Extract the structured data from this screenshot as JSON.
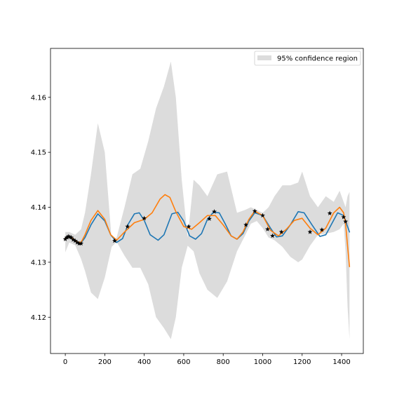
{
  "chart_data": {
    "type": "line",
    "title": "",
    "xlabel": "",
    "ylabel": "",
    "xlim": [
      -75,
      1510
    ],
    "ylim": [
      4.1134,
      4.1689
    ],
    "xticks": [
      0,
      200,
      400,
      600,
      800,
      1000,
      1200,
      1400
    ],
    "xtick_labels": [
      "0",
      "200",
      "400",
      "600",
      "800",
      "1000",
      "1200",
      "1400"
    ],
    "yticks": [
      4.12,
      4.13,
      4.14,
      4.15,
      4.16
    ],
    "ytick_labels": [
      "4.12",
      "4.13",
      "4.14",
      "4.15",
      "4.16"
    ],
    "grid": false,
    "legend": {
      "placement": "top-right",
      "entries": [
        "95% confidence region"
      ]
    },
    "colors": {
      "blue": "#1f77b4",
      "orange": "#ff7f0e",
      "band": "#dcdcdc",
      "markers": "#000000"
    },
    "band": {
      "label": "95% confidence region",
      "x": [
        0,
        20,
        50,
        80,
        100,
        130,
        165,
        200,
        235,
        260,
        300,
        340,
        380,
        420,
        460,
        500,
        535,
        560,
        590,
        620,
        650,
        680,
        720,
        770,
        820,
        870,
        910,
        940,
        970,
        1000,
        1030,
        1060,
        1100,
        1140,
        1180,
        1200,
        1240,
        1280,
        1320,
        1360,
        1390,
        1410,
        1420,
        1430,
        1440
      ],
      "lower": [
        4.1318,
        4.1336,
        4.1331,
        4.1306,
        4.1284,
        4.1245,
        4.1233,
        4.1272,
        4.1328,
        4.1337,
        4.1312,
        4.129,
        4.129,
        4.126,
        4.12,
        4.118,
        4.116,
        4.12,
        4.129,
        4.133,
        4.132,
        4.128,
        4.125,
        4.1235,
        4.1265,
        4.132,
        4.1348,
        4.137,
        4.1375,
        4.1362,
        4.1345,
        4.134,
        4.1328,
        4.131,
        4.13,
        4.1305,
        4.133,
        4.135,
        4.1352,
        4.1355,
        4.136,
        4.137,
        4.132,
        4.122,
        4.116
      ],
      "upper": [
        4.1355,
        4.1355,
        4.135,
        4.136,
        4.139,
        4.146,
        4.1553,
        4.15,
        4.134,
        4.1345,
        4.14,
        4.146,
        4.147,
        4.152,
        4.158,
        4.162,
        4.1665,
        4.16,
        4.145,
        4.1345,
        4.145,
        4.144,
        4.142,
        4.146,
        4.1465,
        4.139,
        4.1395,
        4.14,
        4.1395,
        4.139,
        4.14,
        4.142,
        4.144,
        4.144,
        4.1445,
        4.1465,
        4.142,
        4.14,
        4.142,
        4.141,
        4.143,
        4.141,
        4.14,
        4.142,
        4.1428
      ]
    },
    "series": [
      {
        "color": "blue",
        "x": [
          0,
          20,
          40,
          60,
          80,
          100,
          130,
          165,
          200,
          230,
          260,
          290,
          320,
          350,
          375,
          400,
          430,
          470,
          500,
          540,
          570,
          600,
          630,
          660,
          690,
          720,
          750,
          780,
          810,
          840,
          870,
          900,
          930,
          960,
          1000,
          1040,
          1070,
          1100,
          1140,
          1180,
          1210,
          1250,
          1290,
          1320,
          1350,
          1380,
          1410,
          1440
        ],
        "values": [
          4.1344,
          4.1346,
          4.1343,
          4.1337,
          4.1335,
          4.1345,
          4.1368,
          4.1388,
          4.1375,
          4.135,
          4.1336,
          4.1343,
          4.137,
          4.1388,
          4.139,
          4.1376,
          4.135,
          4.134,
          4.135,
          4.1388,
          4.1391,
          4.1375,
          4.1348,
          4.1342,
          4.1352,
          4.1378,
          4.1391,
          4.139,
          4.137,
          4.1348,
          4.1342,
          4.1352,
          4.1375,
          4.139,
          4.1385,
          4.1362,
          4.1346,
          4.1348,
          4.1368,
          4.1392,
          4.139,
          4.1368,
          4.1347,
          4.135,
          4.137,
          4.139,
          4.1385,
          4.1355
        ]
      },
      {
        "color": "orange",
        "x": [
          0,
          20,
          40,
          60,
          80,
          100,
          130,
          165,
          200,
          230,
          260,
          300,
          350,
          400,
          440,
          480,
          505,
          530,
          560,
          600,
          640,
          680,
          720,
          760,
          800,
          840,
          870,
          900,
          930,
          960,
          1000,
          1040,
          1080,
          1120,
          1160,
          1200,
          1240,
          1280,
          1320,
          1360,
          1390,
          1410,
          1420,
          1430,
          1440
        ],
        "values": [
          4.1344,
          4.1346,
          4.1343,
          4.1337,
          4.1336,
          4.135,
          4.1376,
          4.1394,
          4.1378,
          4.135,
          4.134,
          4.1355,
          4.1372,
          4.1378,
          4.139,
          4.1415,
          4.1423,
          4.1418,
          4.1392,
          4.1365,
          4.136,
          4.1372,
          4.1385,
          4.1385,
          4.1368,
          4.1348,
          4.1342,
          4.1355,
          4.1378,
          4.1393,
          4.1385,
          4.1358,
          4.1348,
          4.136,
          4.1376,
          4.138,
          4.1362,
          4.135,
          4.1362,
          4.139,
          4.14,
          4.139,
          4.137,
          4.133,
          4.1292
        ]
      }
    ],
    "markers": {
      "x": [
        0,
        8,
        15,
        22,
        30,
        40,
        50,
        60,
        70,
        80,
        250,
        315,
        400,
        625,
        730,
        755,
        915,
        960,
        1000,
        1025,
        1050,
        1095,
        1240,
        1300,
        1340,
        1410,
        1420
      ],
      "y": [
        4.1342,
        4.1345,
        4.1347,
        4.1346,
        4.1345,
        4.1341,
        4.1339,
        4.1336,
        4.1334,
        4.1334,
        4.1339,
        4.1365,
        4.138,
        4.1365,
        4.1379,
        4.1392,
        4.1368,
        4.1393,
        4.1385,
        4.136,
        4.1348,
        4.1355,
        4.1355,
        4.1359,
        4.1389,
        4.1382,
        4.1374
      ]
    }
  }
}
